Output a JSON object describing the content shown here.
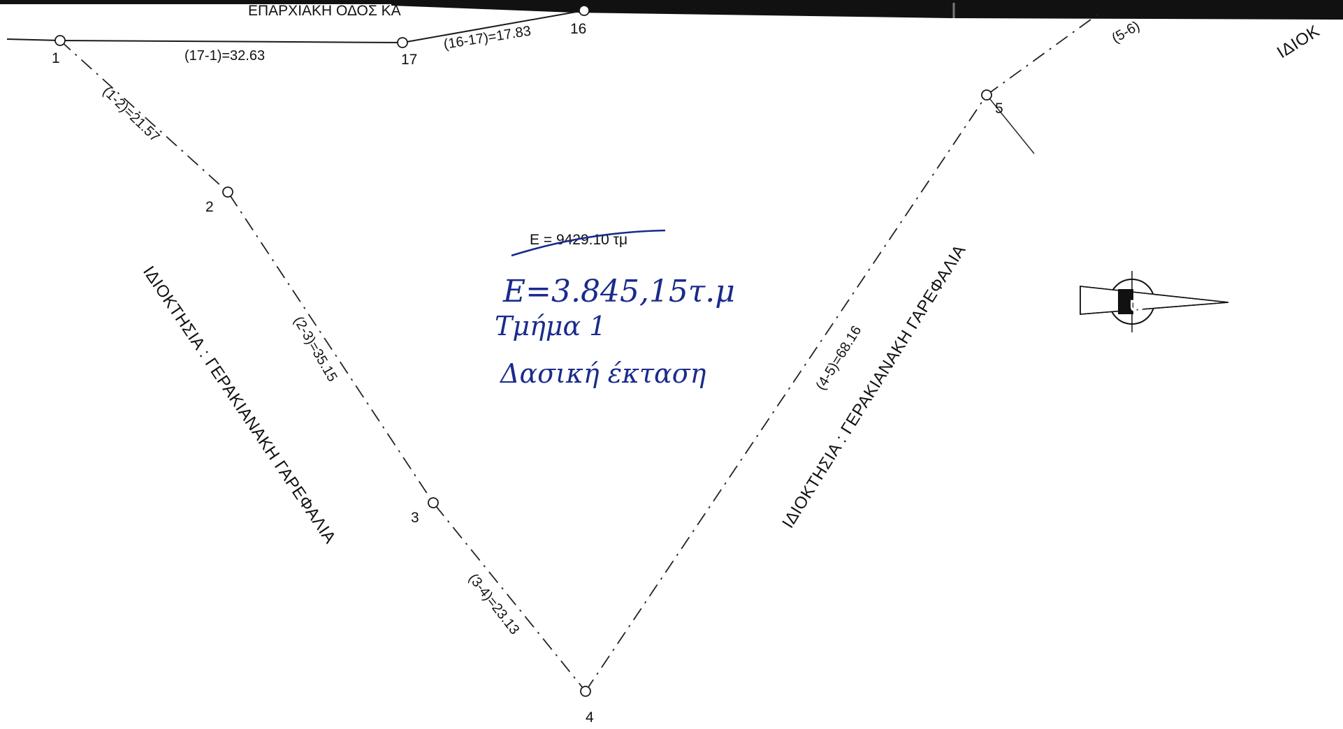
{
  "road_label": "ΕΠΑΡΧΙΑΚΗ ΟΔΟΣ ΚΑ",
  "points": {
    "p1": "1",
    "p2": "2",
    "p3": "3",
    "p4": "4",
    "p5": "5",
    "p16": "16",
    "p17": "17"
  },
  "segments": {
    "s17_1": "(17-1)=32.63",
    "s16_17": "(16-17)=17.83",
    "s1_2": "(1-2)=21.57",
    "s2_3": "(2-3)=35.15",
    "s3_4": "(3-4)=23.13",
    "s4_5": "(4-5)=68.16",
    "s5_6": "(5-6)"
  },
  "owners": {
    "left": "ΙΔΙΟΚΤΗΣΙΑ : ΓΕΡΑΚΙΑΝΑΚΗ ΓΑΡΕΦΑΛΙΑ",
    "right": "ΙΔΙΟΚΤΗΣΙΑ : ΓΕΡΑΚΙΑΝΑΚΗ ΓΑΡΕΦΑΛΙΑ",
    "top_right": "ΙΔΙΟΚ"
  },
  "area_printed": "Ε = 9429.10 τμ",
  "handwritten": {
    "line1": "Ε=3.845,15τ.μ",
    "line2": "Τμήμα 1",
    "line3": "Δασική έκταση"
  },
  "north_arrow_label": "Β",
  "colors": {
    "ink": "#1a2b8c",
    "line": "#1a1a1a",
    "paper": "#ffffff",
    "scan_edge": "#111111"
  }
}
